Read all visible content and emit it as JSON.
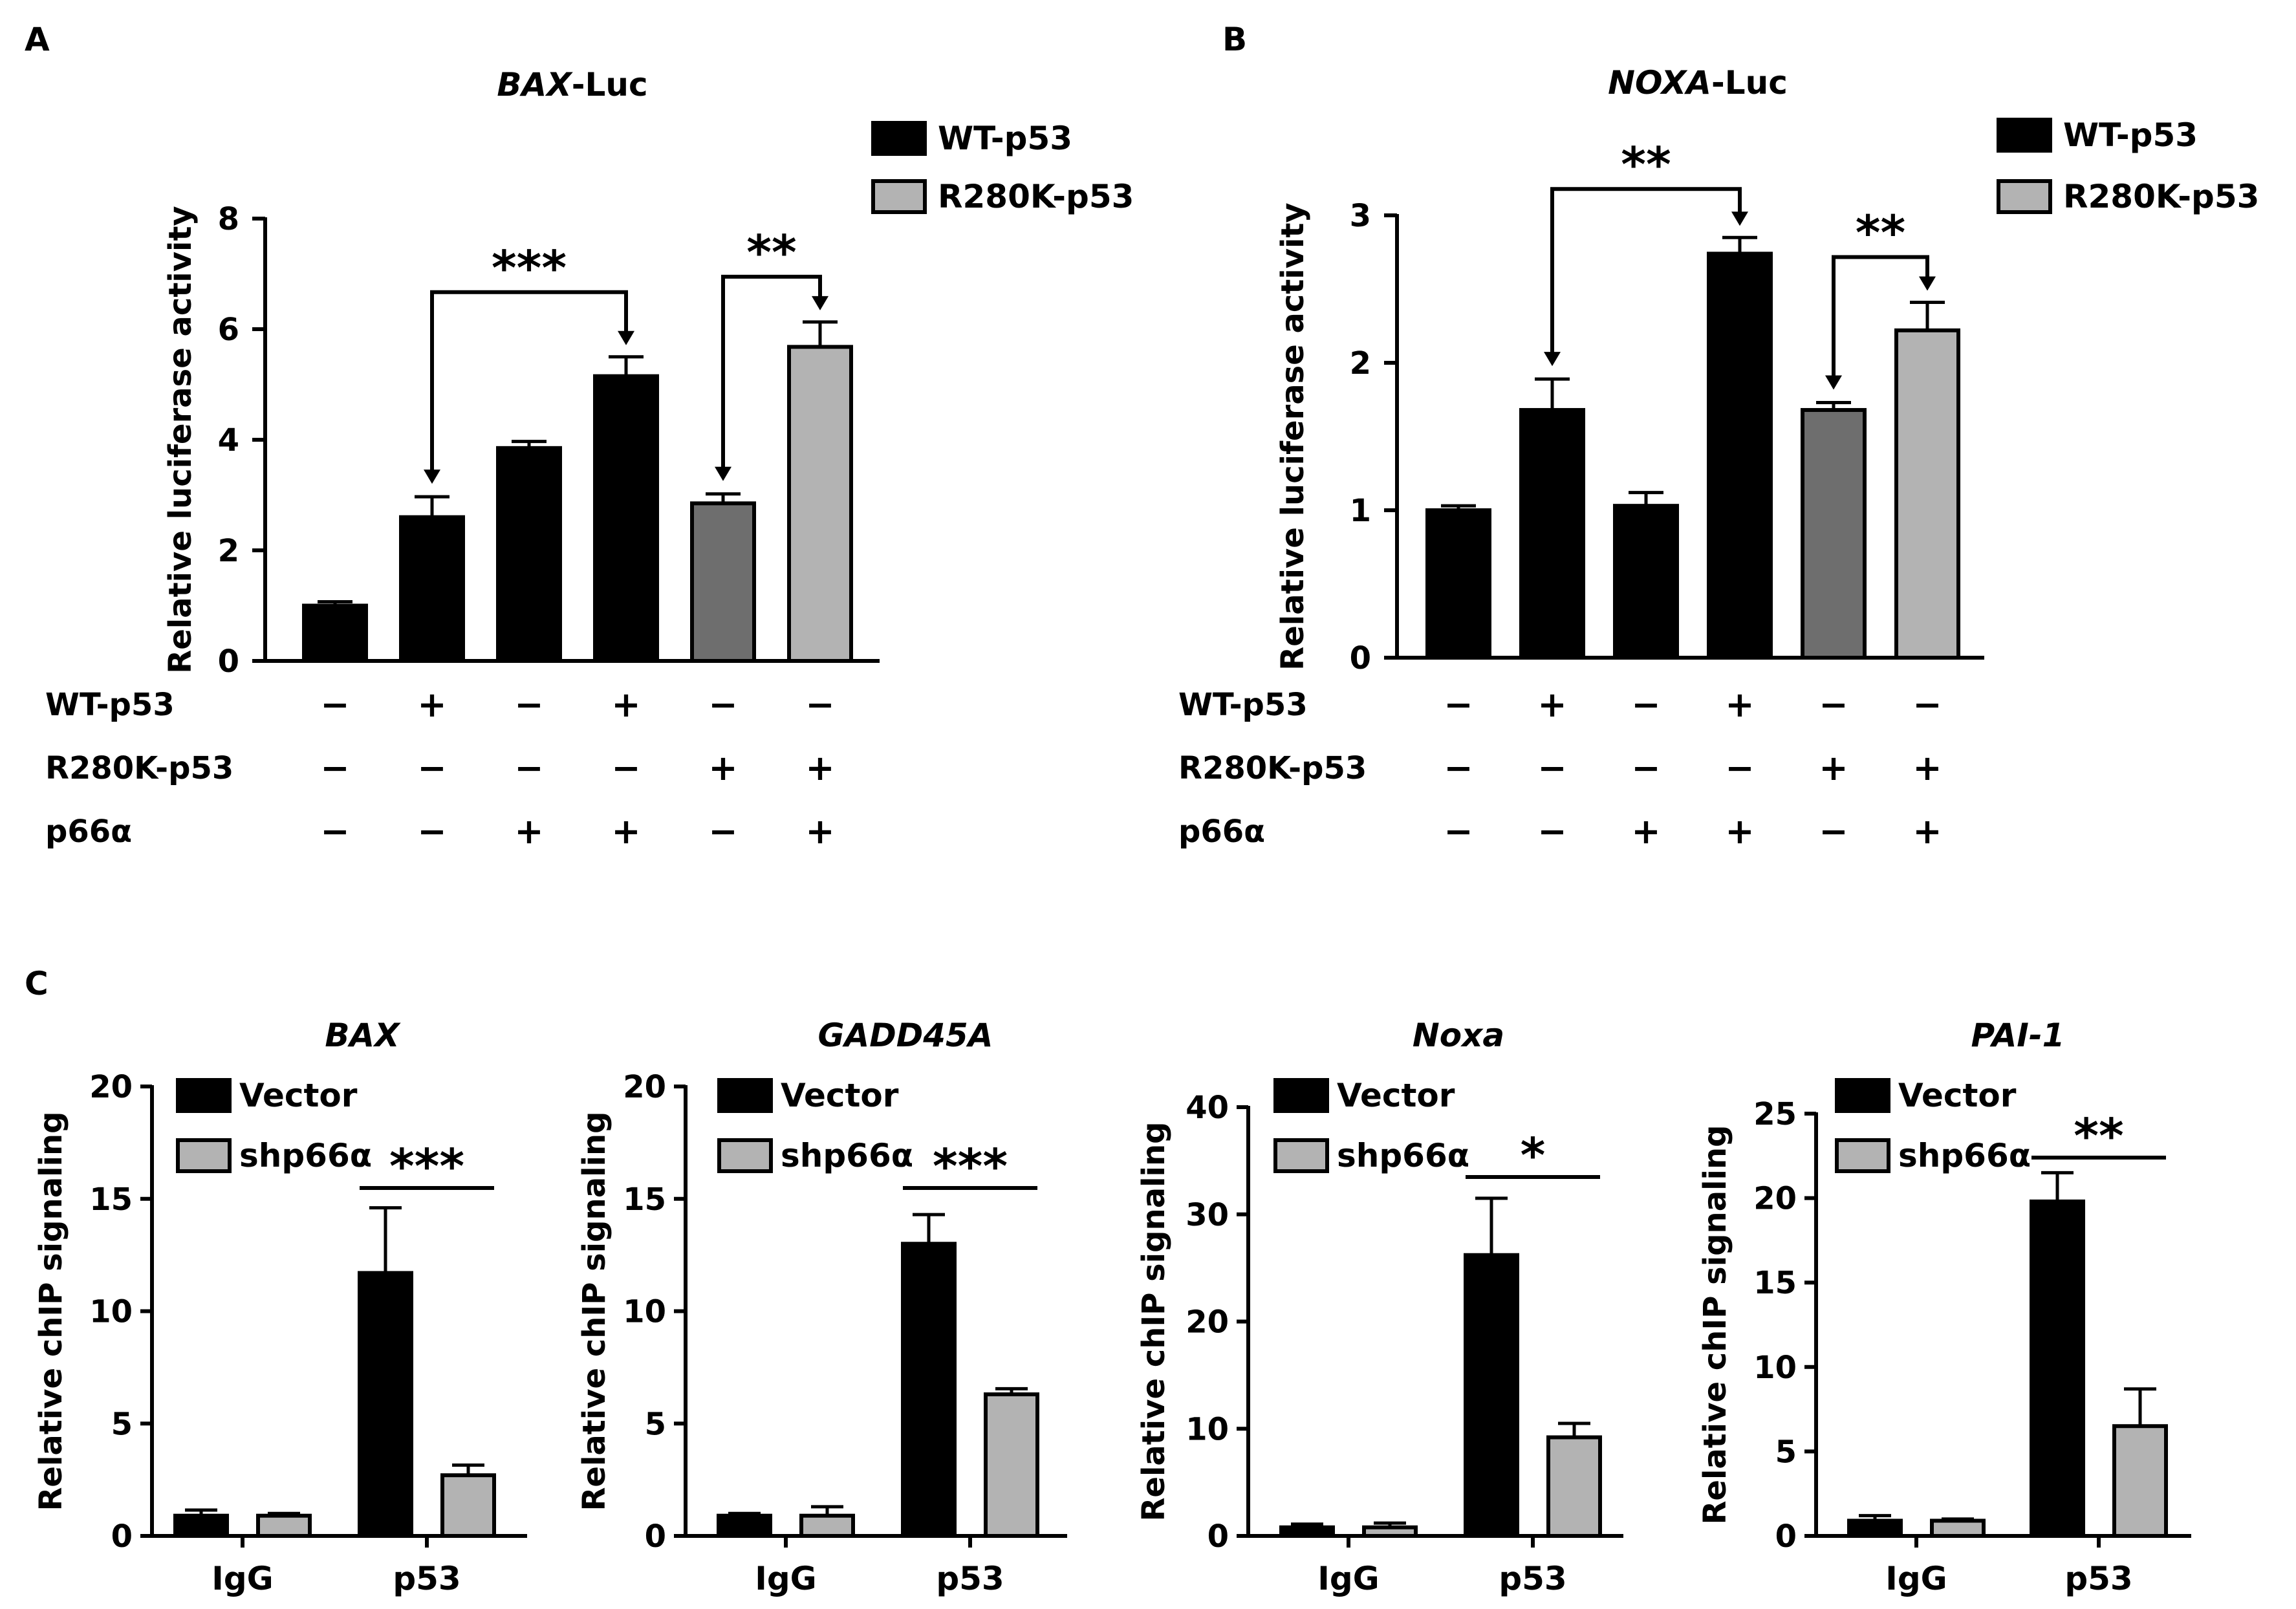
{
  "panel_labels": [
    "A",
    "B",
    "C"
  ],
  "colors": {
    "black": "#000000",
    "dark_gray": "#6e6e6e",
    "light_gray": "#b3b3b3",
    "text": "#000000"
  },
  "chart_data": [
    {
      "type": "bar",
      "panel": "A",
      "title_italic": "BAX",
      "title_suffix": "-Luc",
      "ylabel": "Relative luciferase activity",
      "ylim": [
        0,
        8
      ],
      "yticks": [
        "0",
        "2",
        "4",
        "6",
        "8"
      ],
      "values": [
        1.0,
        2.6,
        3.85,
        5.15,
        2.85,
        5.68
      ],
      "errors": [
        0.07,
        0.37,
        0.12,
        0.35,
        0.17,
        0.45
      ],
      "bar_colors": [
        "black",
        "black",
        "black",
        "black",
        "dark_gray",
        "light_gray"
      ],
      "legend": [
        {
          "label": "WT-p53",
          "color": "black"
        },
        {
          "label": "R280K-p53",
          "color": "light_gray"
        }
      ],
      "condition_rows": [
        {
          "label": "WT-p53",
          "signs": [
            "−",
            "+",
            "−",
            "+",
            "−",
            "−"
          ]
        },
        {
          "label": "R280K-p53",
          "signs": [
            "−",
            "−",
            "−",
            "−",
            "+",
            "+"
          ]
        },
        {
          "label": "p66α",
          "signs": [
            "−",
            "−",
            "+",
            "+",
            "−",
            "+"
          ]
        }
      ],
      "comparisons": [
        {
          "from": 1,
          "to": 3,
          "label": "***"
        },
        {
          "from": 4,
          "to": 5,
          "label": "**"
        }
      ]
    },
    {
      "type": "bar",
      "panel": "B",
      "title_italic": "NOXA",
      "title_suffix": "-Luc",
      "ylabel": "Relative luciferase activity",
      "ylim": [
        0,
        3
      ],
      "yticks": [
        "0",
        "1",
        "2",
        "3"
      ],
      "values": [
        1.0,
        1.68,
        1.03,
        2.74,
        1.68,
        2.22
      ],
      "errors": [
        0.03,
        0.21,
        0.09,
        0.11,
        0.05,
        0.19
      ],
      "bar_colors": [
        "black",
        "black",
        "black",
        "black",
        "dark_gray",
        "light_gray"
      ],
      "legend": [
        {
          "label": "WT-p53",
          "color": "black"
        },
        {
          "label": "R280K-p53",
          "color": "light_gray"
        }
      ],
      "condition_rows": [
        {
          "label": "WT-p53",
          "signs": [
            "−",
            "+",
            "−",
            "+",
            "−",
            "−"
          ]
        },
        {
          "label": "R280K-p53",
          "signs": [
            "−",
            "−",
            "−",
            "−",
            "+",
            "+"
          ]
        },
        {
          "label": "p66α",
          "signs": [
            "−",
            "−",
            "+",
            "+",
            "−",
            "+"
          ]
        }
      ],
      "comparisons": [
        {
          "from": 1,
          "to": 3,
          "label": "**"
        },
        {
          "from": 4,
          "to": 5,
          "label": "**"
        }
      ]
    },
    {
      "type": "bar",
      "panel": "C",
      "title": "BAX",
      "ylabel": "Relative chIP signaling",
      "ylim": [
        0,
        20
      ],
      "yticks": [
        "0",
        "5",
        "10",
        "15",
        "20"
      ],
      "categories": [
        "IgG",
        "p53"
      ],
      "series": [
        {
          "name": "Vector",
          "color": "black",
          "values": [
            0.9,
            11.7
          ],
          "errors": [
            0.25,
            2.9
          ]
        },
        {
          "name": "shp66α",
          "color": "light_gray",
          "values": [
            0.9,
            2.7
          ],
          "errors": [
            0.1,
            0.45
          ]
        }
      ],
      "significance": "***"
    },
    {
      "type": "bar",
      "panel": "C",
      "title": "GADD45A",
      "ylabel": "Relative chIP signaling",
      "ylim": [
        0,
        20
      ],
      "yticks": [
        "0",
        "5",
        "10",
        "15",
        "20"
      ],
      "categories": [
        "IgG",
        "p53"
      ],
      "series": [
        {
          "name": "Vector",
          "color": "black",
          "values": [
            0.9,
            13.0
          ],
          "errors": [
            0.1,
            1.3
          ]
        },
        {
          "name": "shp66α",
          "color": "light_gray",
          "values": [
            0.9,
            6.3
          ],
          "errors": [
            0.4,
            0.25
          ]
        }
      ],
      "significance": "***"
    },
    {
      "type": "bar",
      "panel": "C",
      "title": "Noxa",
      "ylabel": "Relative chIP signaling",
      "ylim": [
        0,
        40
      ],
      "yticks": [
        "0",
        "10",
        "20",
        "30",
        "40"
      ],
      "categories": [
        "IgG",
        "p53"
      ],
      "series": [
        {
          "name": "Vector",
          "color": "black",
          "values": [
            0.8,
            26.2
          ],
          "errors": [
            0.3,
            5.3
          ]
        },
        {
          "name": "shp66α",
          "color": "light_gray",
          "values": [
            0.8,
            9.2
          ],
          "errors": [
            0.4,
            1.3
          ]
        }
      ],
      "significance": "*"
    },
    {
      "type": "bar",
      "panel": "C",
      "title": "PAI-1",
      "ylabel": "Relative chIP signaling",
      "ylim": [
        0,
        25
      ],
      "yticks": [
        "0",
        "5",
        "10",
        "15",
        "20",
        "25"
      ],
      "categories": [
        "IgG",
        "p53"
      ],
      "series": [
        {
          "name": "Vector",
          "color": "black",
          "values": [
            0.9,
            19.8
          ],
          "errors": [
            0.3,
            1.7
          ]
        },
        {
          "name": "shp66α",
          "color": "light_gray",
          "values": [
            0.9,
            6.5
          ],
          "errors": [
            0.1,
            2.2
          ]
        }
      ],
      "significance": "**"
    }
  ]
}
